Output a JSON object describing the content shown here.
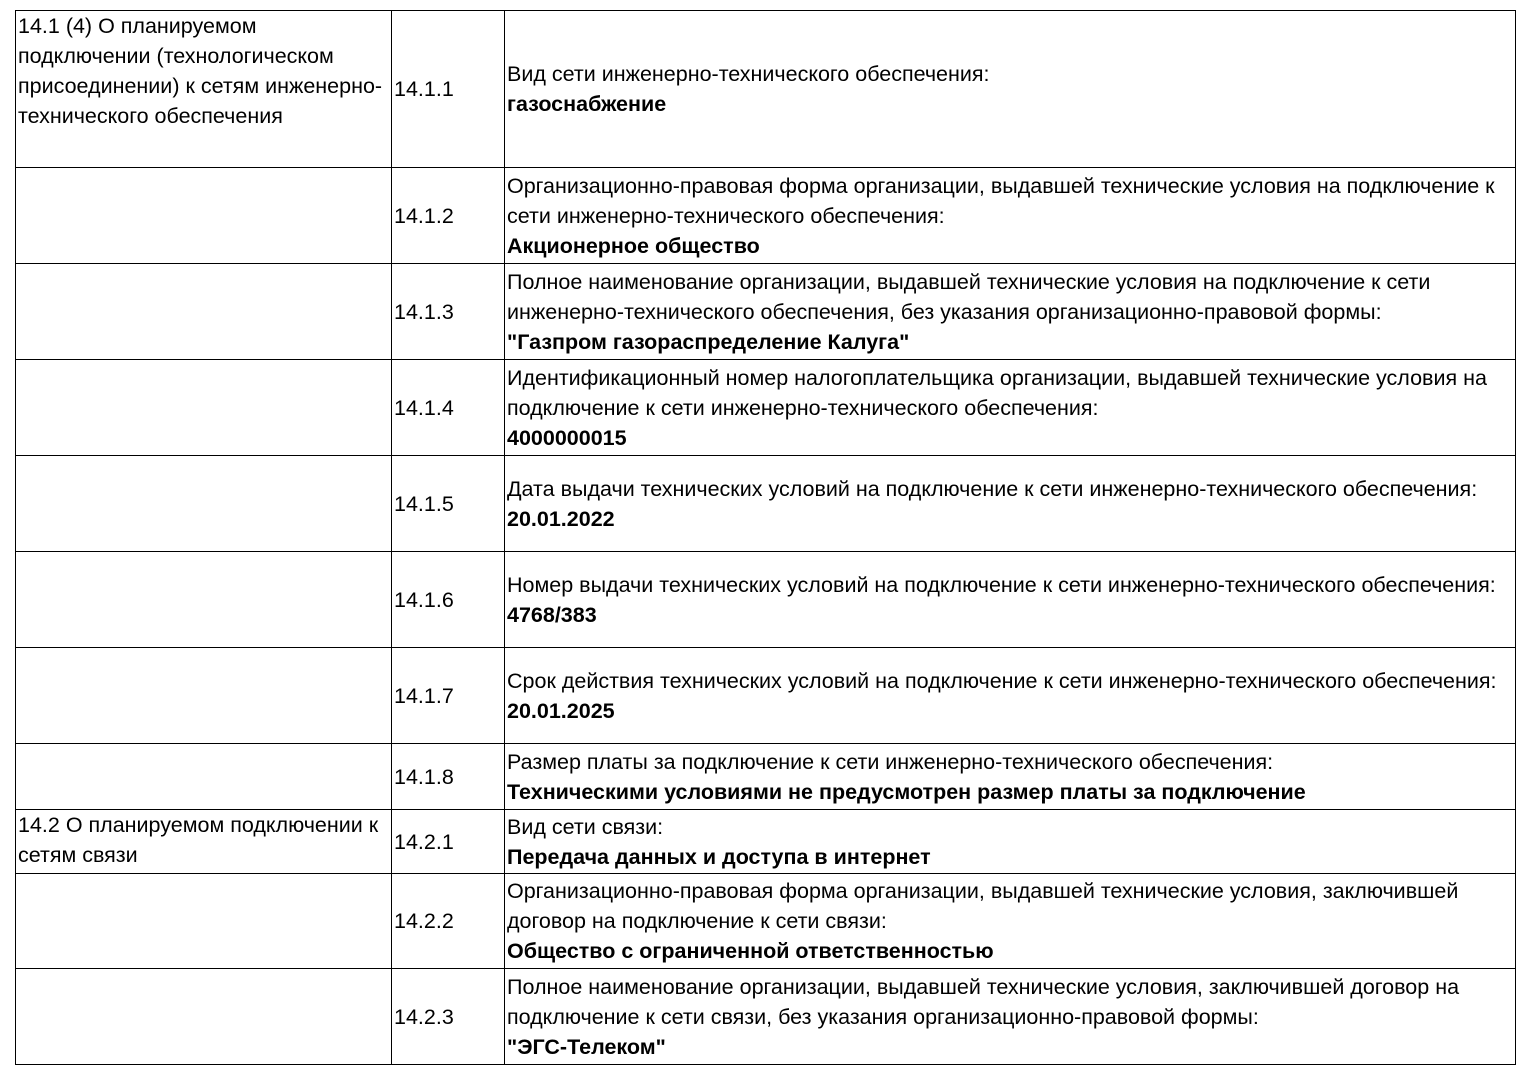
{
  "table": {
    "rows": [
      {
        "section": "14.1 (4) О планируемом подключении (технологическом присоединении) к сетям инженерно-технического обеспечения",
        "code": "14.1.1",
        "label": "Вид сети инженерно-технического обеспечения:",
        "value": "газоснабжение"
      },
      {
        "code": "14.1.2",
        "label": "Организационно-правовая форма организации, выдавшей технические условия на подключение к сети инженерно-технического обеспечения:",
        "value": "Акционерное общество"
      },
      {
        "code": "14.1.3",
        "label": "Полное наименование организации, выдавшей технические условия на подключение к сети инженерно-технического обеспечения, без указания организационно-правовой формы:",
        "value": "\"Газпром газораспределение Калуга\""
      },
      {
        "code": "14.1.4",
        "label": "Идентификационный номер налогоплательщика организации, выдавшей технические условия на подключение к сети инженерно-технического обеспечения:",
        "value": "4000000015"
      },
      {
        "code": "14.1.5",
        "label": "Дата выдачи технических условий на подключение к сети инженерно-технического обеспечения:",
        "value": "20.01.2022"
      },
      {
        "code": "14.1.6",
        "label": "Номер выдачи технических условий на подключение к сети инженерно-технического обеспечения:",
        "value": "4768/383"
      },
      {
        "code": "14.1.7",
        "label": "Срок действия технических условий на подключение к сети инженерно-технического обеспечения:",
        "value": "20.01.2025"
      },
      {
        "code": "14.1.8",
        "label": "Размер платы за подключение к сети инженерно-технического обеспечения:",
        "value": "Техническими условиями не предусмотрен размер платы за подключение"
      },
      {
        "section": "14.2 О планируемом подключении к сетям связи",
        "code": "14.2.1",
        "label": "Вид сети связи:",
        "value": "Передача данных и доступа в интернет"
      },
      {
        "code": "14.2.2",
        "label": "Организационно-правовая форма организации, выдавшей технические условия, заключившей договор на подключение к сети связи:",
        "value": "Общество с ограниченной ответственностью"
      },
      {
        "code": "14.2.3",
        "label": "Полное наименование организации, выдавшей технические условия, заключившей договор на подключение к сети связи, без указания организационно-правовой формы:",
        "value": "\"ЭГС-Телеком\""
      }
    ]
  }
}
